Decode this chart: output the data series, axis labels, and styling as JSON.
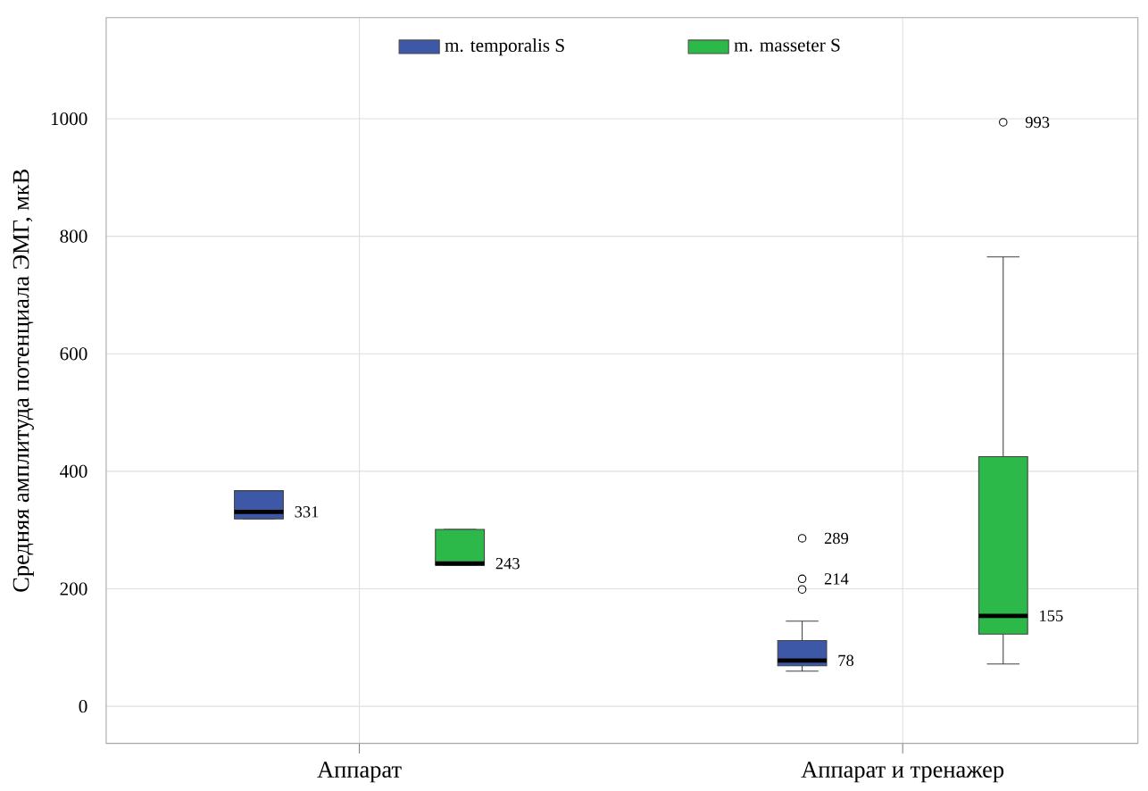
{
  "chart_data": {
    "type": "box",
    "ylabel": "Средняя амплитуда потенциала ЭМГ, мкВ",
    "categories": [
      "Аппарат",
      "Аппарат и тренажер"
    ],
    "series": [
      {
        "name": "m. temporalis S",
        "color": "#3e58a8",
        "boxes": [
          {
            "low": 319,
            "q1": 319,
            "median": 331,
            "q3": 367,
            "high": 367
          },
          {
            "low": 60,
            "q1": 69,
            "median": 78,
            "q3": 112,
            "high": 145,
            "outliers": [
              217,
              286,
              199
            ]
          }
        ]
      },
      {
        "name": "m. masseter S",
        "color": "#2db84a",
        "boxes": [
          {
            "low": 240,
            "q1": 240,
            "median": 243,
            "q3": 301,
            "high": 301
          },
          {
            "low": 72,
            "q1": 123,
            "median": 154,
            "q3": 425,
            "high": 765,
            "outliers": [
              994
            ]
          }
        ]
      }
    ],
    "annotations": [
      "331",
      "243",
      "78",
      "214",
      "289",
      "155",
      "993"
    ],
    "ylim": [
      -63,
      1172
    ],
    "yticks": [
      0,
      200,
      400,
      600,
      800,
      1000
    ],
    "grid": true,
    "legend": "top"
  }
}
